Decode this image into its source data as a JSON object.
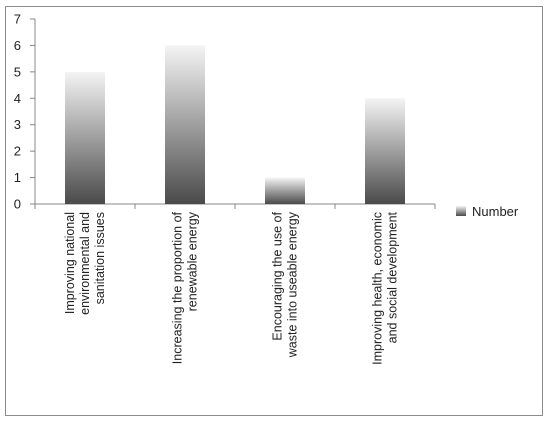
{
  "chart_data": {
    "type": "bar",
    "categories": [
      [
        "Improving national",
        "environmental and",
        "sanitation issues"
      ],
      [
        "Increasing the proportion of",
        "renewable energy"
      ],
      [
        "Encouraging the use of",
        "waste into useable energy"
      ],
      [
        "Improving health, economic",
        "and social development"
      ]
    ],
    "series": [
      {
        "name": "Number",
        "values": [
          5,
          6,
          1,
          4
        ]
      }
    ],
    "ylim": [
      0,
      7
    ],
    "yticks": [
      0,
      1,
      2,
      3,
      4,
      5,
      6,
      7
    ],
    "grid": false,
    "legend": "right",
    "colors": {
      "bar_top": "#f4f4f4",
      "bar_bottom": "#4a4a4a",
      "axis": "#888888"
    }
  }
}
